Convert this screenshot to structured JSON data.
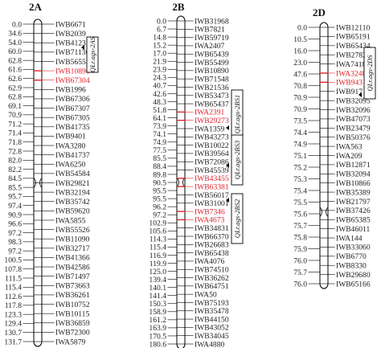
{
  "chromosomes": [
    {
      "title": "2A",
      "positions": [
        "0.0",
        "34.6",
        "54.0",
        "60.0",
        "62.8",
        "61.6",
        "62.6",
        "62.9",
        "62.8",
        "69.1",
        "70.9",
        "71.2",
        "71.4",
        "71.8",
        "72.8",
        "82.0",
        "82.2",
        "84.5",
        "85.5",
        "95.7",
        "97.4",
        "90.9",
        "96.6",
        "97.2",
        "98.3",
        "97.2",
        "100.5",
        "107.8",
        "111.5",
        "115.4",
        "112.6",
        "117.8",
        "123.3",
        "129.4",
        "130.7",
        "131.7"
      ],
      "red_indices": [
        6,
        7
      ],
      "markers": [
        {
          "name": "IWB6671"
        },
        {
          "name": "IWB2039"
        },
        {
          "name": "IWB41233"
        },
        {
          "name": "IWB71136"
        },
        {
          "name": "IWB56555"
        },
        {
          "name": "IWB10896"
        },
        {
          "name": "IWB67304"
        },
        {
          "name": "IWB1996"
        },
        {
          "name": "IWB67306"
        },
        {
          "name": "IWB67307"
        },
        {
          "name": "IWB67305"
        },
        {
          "name": "IWB41735"
        },
        {
          "name": "IWB9401"
        },
        {
          "name": "IWA3280"
        },
        {
          "name": "IWB41737"
        },
        {
          "name": "IWA6250"
        },
        {
          "name": "IWB54584"
        },
        {
          "name": "IWB29821"
        },
        {
          "name": "IWB32194"
        },
        {
          "name": "IWB35742"
        },
        {
          "name": "IWB59620"
        },
        {
          "name": "IWA5855"
        },
        {
          "name": "IWB55526"
        },
        {
          "name": "IWB11090"
        },
        {
          "name": "IWB32717"
        },
        {
          "name": "IWB41366"
        },
        {
          "name": "IWB42586"
        },
        {
          "name": "IWB71497"
        },
        {
          "name": "IWB73663"
        },
        {
          "name": "IWB36261"
        },
        {
          "name": "IWB10752"
        },
        {
          "name": "IWB10115"
        },
        {
          "name": "IWB36859"
        },
        {
          "name": "IWB72300"
        },
        {
          "name": "IWA5879"
        }
      ],
      "marker_red": [
        5,
        6
      ],
      "qtl_label": "QLr.ags-2AS"
    },
    {
      "title": "2B",
      "positions": [
        "0.0",
        "6.7",
        "14.8",
        "15.2",
        "17.0",
        "21.9",
        "23.9",
        "24.3",
        "40.7",
        "42.6",
        "48.3",
        "51.8",
        "64.1",
        "73.9",
        "74.1",
        "74.9",
        "77.5",
        "85.5",
        "88.4",
        "89.8",
        "90.5",
        "95.5",
        "95.5",
        "96.2",
        "97.2",
        "102.9",
        "105.6",
        "114.3",
        "115.4",
        "116.9",
        "119.9",
        "125.0",
        "139.4",
        "140.1",
        "141.4",
        "150.3",
        "158.9",
        "161.2",
        "163.9",
        "170.5",
        "180.6"
      ],
      "red_indices": [],
      "markers": [
        {
          "name": "IWB31968"
        },
        {
          "name": "IWB7821"
        },
        {
          "name": "IWB59719"
        },
        {
          "name": "IWA2407"
        },
        {
          "name": "IWB65439"
        },
        {
          "name": "IWB55499"
        },
        {
          "name": "IWB10890"
        },
        {
          "name": "IWB71548"
        },
        {
          "name": "IWB21536"
        },
        {
          "name": "IWB53473"
        },
        {
          "name": "IWB65437"
        },
        {
          "name": "IWA2391"
        },
        {
          "name": "IWB29273"
        },
        {
          "name": "IWA1359"
        },
        {
          "name": "IWB43273"
        },
        {
          "name": "IWB10022"
        },
        {
          "name": "IWB39564"
        },
        {
          "name": "IWB72086"
        },
        {
          "name": "IWB45539"
        },
        {
          "name": "IWB43455"
        },
        {
          "name": "IWB63381"
        },
        {
          "name": "IWB56017"
        },
        {
          "name": "IWB31001"
        },
        {
          "name": "IWB7346"
        },
        {
          "name": "IWA4673"
        },
        {
          "name": "IWB34831"
        },
        {
          "name": "IWB66370"
        },
        {
          "name": "IWB26683"
        },
        {
          "name": "IWB65438"
        },
        {
          "name": "IWA4076"
        },
        {
          "name": "IWB74510"
        },
        {
          "name": "IWB36262"
        },
        {
          "name": "IWB64751"
        },
        {
          "name": "IWA50"
        },
        {
          "name": "IWB75193"
        },
        {
          "name": "IWB35478"
        },
        {
          "name": "IWB44150"
        },
        {
          "name": "IWB43052"
        },
        {
          "name": "IWB34045"
        },
        {
          "name": "IWA4880"
        }
      ],
      "marker_red": [
        11,
        12,
        19,
        20,
        23,
        24
      ],
      "qtl_labels": [
        "QLr.ags-2BS1",
        "QLr.ags-2BS3",
        "QLr.ags-2BS2"
      ]
    },
    {
      "title": "2D",
      "positions": [
        "0.0",
        "10.5",
        "16.0",
        "23.0",
        "47.6",
        "70.8",
        "70.9",
        "70.9",
        "73.5",
        "74.4",
        "74.9",
        "75.1",
        "75.2",
        "75.3",
        "75.4",
        "75.5",
        "75.6",
        "75.7",
        "75.8",
        "75.9",
        "76.0",
        "75.7",
        "76.0"
      ],
      "red_indices": [],
      "markers": [
        {
          "name": "IWB12110"
        },
        {
          "name": "IWB65191"
        },
        {
          "name": "IWB65434"
        },
        {
          "name": "IWB27829"
        },
        {
          "name": "IWA7418"
        },
        {
          "name": "IWA3248"
        },
        {
          "name": "IWB943"
        },
        {
          "name": "IWB917"
        },
        {
          "name": "IWB32095"
        },
        {
          "name": "IWB32096"
        },
        {
          "name": "IWB47073"
        },
        {
          "name": "IWB23479"
        },
        {
          "name": "IWB50376"
        },
        {
          "name": "IWA563"
        },
        {
          "name": "IWA209"
        },
        {
          "name": "IWB12871"
        },
        {
          "name": "IWB32094"
        },
        {
          "name": "IWB10866"
        },
        {
          "name": "IWB35389"
        },
        {
          "name": "IWB21797"
        },
        {
          "name": "IWB37426"
        },
        {
          "name": "IWB65385"
        },
        {
          "name": "IWB46011"
        },
        {
          "name": "IWA144"
        },
        {
          "name": "IWB33060"
        },
        {
          "name": "IWB6770"
        },
        {
          "name": "IWB8330"
        },
        {
          "name": "IWB29680"
        },
        {
          "name": "IWB65166"
        }
      ],
      "marker_red": [
        5,
        6
      ],
      "qtl_label": "QLr.ags-2DS"
    }
  ]
}
